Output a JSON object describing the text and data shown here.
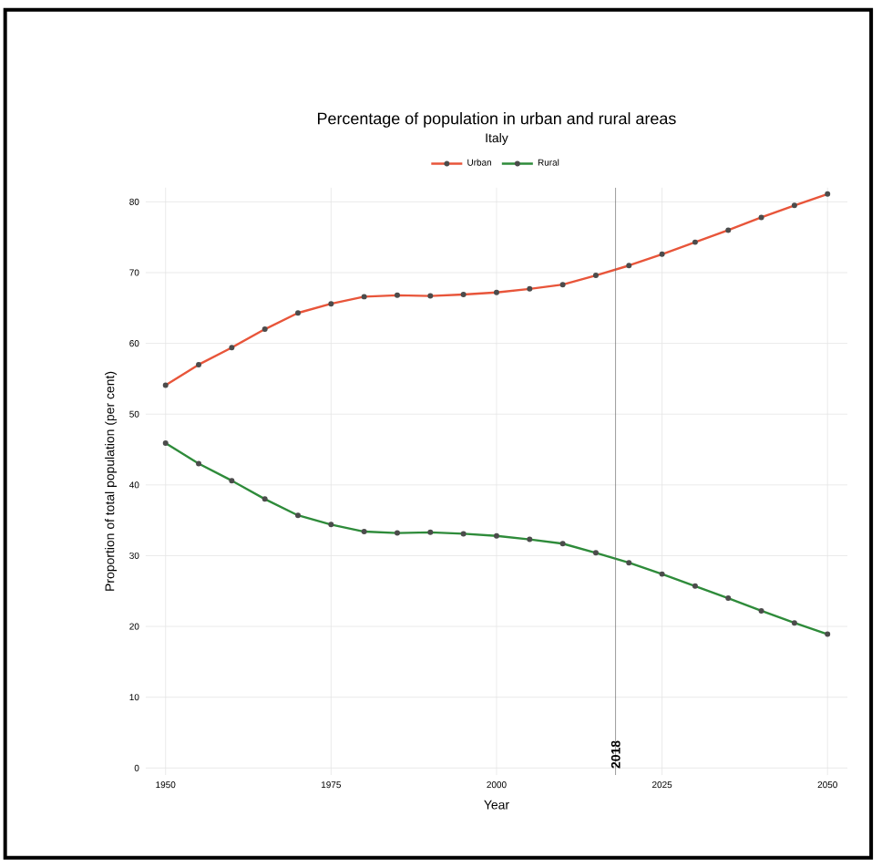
{
  "chart_data": {
    "type": "line",
    "title": "Percentage of population in urban and rural areas",
    "subtitle": "Italy",
    "xlabel": "Year",
    "ylabel": "Proportion of total population (per cent)",
    "x": [
      1950,
      1955,
      1960,
      1965,
      1970,
      1975,
      1980,
      1985,
      1990,
      1995,
      2000,
      2005,
      2010,
      2015,
      2020,
      2025,
      2030,
      2035,
      2040,
      2045,
      2050
    ],
    "series": [
      {
        "name": "Urban",
        "color": "#e8553a",
        "values": [
          54.1,
          57,
          59.4,
          62,
          64.3,
          65.6,
          66.6,
          66.8,
          66.7,
          66.9,
          67.2,
          67.7,
          68.3,
          69.6,
          71.0,
          72.6,
          74.3,
          76.0,
          77.8,
          79.5,
          81.1
        ]
      },
      {
        "name": "Rural",
        "color": "#2e8b3a",
        "values": [
          45.9,
          43,
          40.6,
          38,
          35.7,
          34.4,
          33.4,
          33.2,
          33.3,
          33.1,
          32.8,
          32.3,
          31.7,
          30.4,
          29.0,
          27.4,
          25.7,
          24.0,
          22.2,
          20.5,
          18.9
        ]
      }
    ],
    "xlim": [
      1947,
      2053
    ],
    "ylim": [
      -1,
      82
    ],
    "xticks": [
      1950,
      1975,
      2000,
      2025,
      2050
    ],
    "yticks": [
      0,
      10,
      20,
      30,
      40,
      50,
      60,
      70,
      80
    ],
    "ref_lines": [
      {
        "axis": "x",
        "value": 2018,
        "label": "2018"
      }
    ],
    "grid": true,
    "legend": "top",
    "marker": "circle",
    "line_style": "solid"
  }
}
